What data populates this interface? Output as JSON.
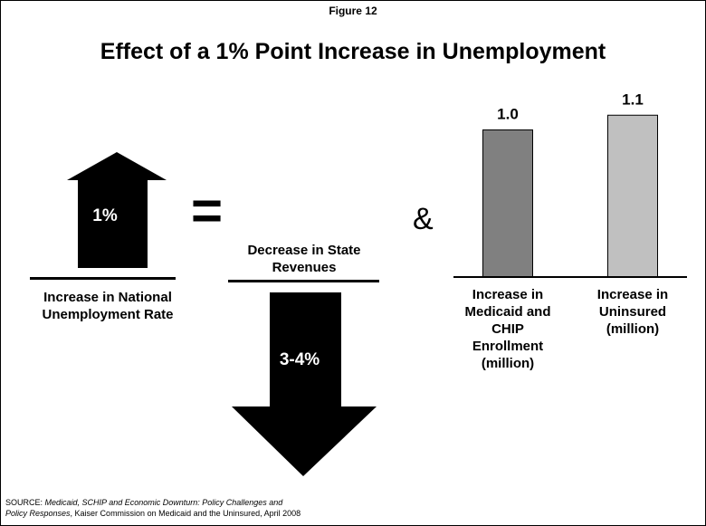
{
  "figure_label": "Figure 12",
  "title": "Effect of a 1% Point Increase in Unemployment",
  "left_block": {
    "arrow_value": "1%",
    "caption_line1": "Increase in National",
    "caption_line2": "Unemployment Rate"
  },
  "equals": "=",
  "middle_block": {
    "caption_line1": "Decrease in State",
    "caption_line2": "Revenues",
    "arrow_value": "3-4%"
  },
  "ampersand": "&",
  "chart_data": {
    "type": "bar",
    "categories": [
      [
        "Increase in",
        "Medicaid and",
        "CHIP",
        "Enrollment",
        "(million)"
      ],
      [
        "Increase in",
        "Uninsured",
        "(million)"
      ]
    ],
    "values": [
      1.0,
      1.1
    ],
    "data_labels": [
      "1.0",
      "1.1"
    ],
    "colors": [
      "#808080",
      "#c0c0c0"
    ],
    "ylim": [
      0,
      1.2
    ],
    "grid": false,
    "legend": false
  },
  "source": {
    "prefix": "SOURCE: ",
    "italic_1": "Medicaid, SCHIP and Economic Downturn: Policy Challenges and",
    "italic_2": "Policy Responses",
    "suffix": ", Kaiser Commission on Medicaid and the Uninsured, April 2008"
  },
  "colors": {
    "arrow": "#000000",
    "background": "#ffffff"
  }
}
